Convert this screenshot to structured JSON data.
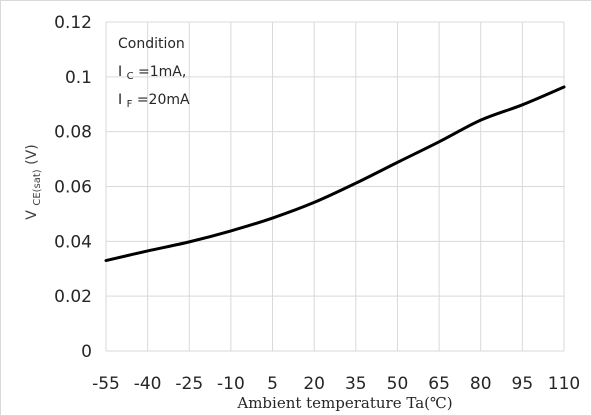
{
  "chart_data": {
    "type": "line",
    "x": [
      -55,
      -40,
      -25,
      -10,
      5,
      20,
      35,
      50,
      65,
      80,
      95,
      110
    ],
    "series": [
      {
        "values": [
          0.033,
          0.0365,
          0.0398,
          0.0438,
          0.0485,
          0.0542,
          0.0612,
          0.0688,
          0.0763,
          0.0842,
          0.0898,
          0.0963
        ]
      }
    ],
    "x_ticks": [
      "-55",
      "-40",
      "-25",
      "-10",
      "5",
      "20",
      "35",
      "50",
      "65",
      "80",
      "95",
      "110"
    ],
    "y_ticks": [
      "0",
      "0.02",
      "0.04",
      "0.06",
      "0.08",
      "0.1",
      "0.12"
    ],
    "ylim": [
      0,
      0.12
    ],
    "xlabel": "Ambient temperature Ta(℃)",
    "ylabel": {
      "main": "V",
      "sub": "CE(sat)",
      "unit": " (V)"
    },
    "annotation": {
      "line1": "Condition",
      "line2_main": "I",
      "line2_sub": "C",
      "line2_rest": "=1mA,",
      "line3_main": "I",
      "line3_sub": "F",
      "line3_rest": "=20mA"
    },
    "grid": true,
    "colors": {
      "line": "#000000",
      "grid": "#d9d9d9"
    }
  }
}
